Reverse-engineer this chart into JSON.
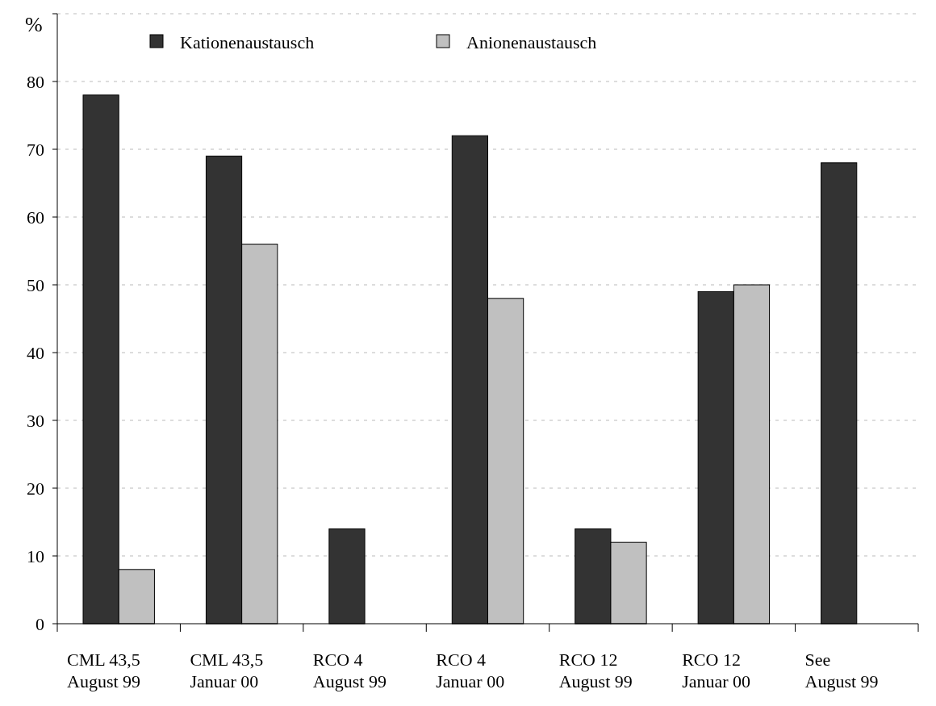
{
  "chart_data": {
    "type": "bar",
    "ylabel": "%",
    "categories": [
      "CML 43,5\nAugust 99",
      "CML 43,5\nJanuar 00",
      "RCO 4\nAugust 99",
      "RCO 4\nJanuar 00",
      "RCO 12\nAugust 99",
      "RCO 12\nJanuar 00",
      "See\nAugust 99"
    ],
    "series": [
      {
        "name": "Kationenaustausch",
        "color": "#333333",
        "values": [
          78,
          69,
          14,
          72,
          14,
          49,
          68
        ]
      },
      {
        "name": "Anionenaustausch",
        "color": "#c0c0c0",
        "values": [
          8,
          56,
          null,
          48,
          12,
          50,
          null
        ]
      }
    ],
    "ylim": [
      0,
      90
    ],
    "yticks": [
      0,
      10,
      20,
      30,
      40,
      50,
      60,
      70,
      80,
      {
        "value": 90,
        "label": null
      }
    ],
    "grid": "y",
    "legend": "top"
  }
}
